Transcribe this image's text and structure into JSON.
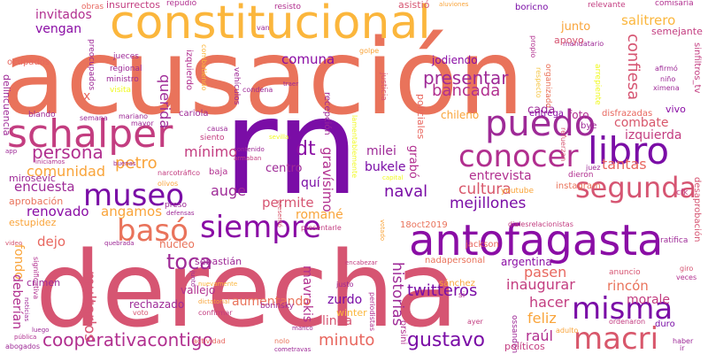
{
  "words": {
    "acusacion": "acusación",
    "rn": "rn",
    "derecha": "derecha",
    "constitucional": "constitucional",
    "antofagasta": "antofagasta",
    "schalper": "schalper",
    "libro": "libro",
    "puedo": "puedo",
    "conocer": "conocer",
    "museo": "museo",
    "segunda": "segunda",
    "siempre": "siempre",
    "baso": "basó",
    "misma": "misma",
    "macri": "macri",
    "cooperativacontigo": "cooperativacontigo",
    "gustavo": "gustavo",
    "persona": "persona",
    "toca": "toca",
    "petro": "petro",
    "minimo": "mínimo",
    "comunidad": "comunidad",
    "renovado": "renovado",
    "encuesta": "encuesta",
    "angamos": "angamos",
    "presentar": "presentar",
    "bancada": "bancada",
    "comuna": "comuna",
    "querida": "querida",
    "cultura": "cultura",
    "naval": "naval",
    "mejillones": "mejillones",
    "entrevista": "entrevista",
    "tantas": "tantas",
    "combate": "combate",
    "izquierda_top": "izquierda",
    "confiesa": "confiesa",
    "salitrero": "salitrero",
    "junto": "junto",
    "cada": "cada",
    "invitados": "invitados",
    "vengan": "vengan",
    "fondo": "fondo",
    "dejo": "dejo",
    "multarlos": "multarlos",
    "mavrakis": "mavrakis",
    "historias": "historias",
    "pasen": "pasen",
    "inaugurar": "inaugurar",
    "rincon": "rincón",
    "twitteros": "twitteros",
    "hacer": "hacer",
    "morale": "morale",
    "raul": "raúl",
    "feliz": "feliz",
    "minuto": "minuto",
    "argentina": "argentina",
    "romane": "romané",
    "permite": "permite",
    "dt": "dt",
    "auge": "auge",
    "gravisimo": "gravísimo",
    "bukele": "bukele",
    "milei": "milei",
    "centro": "centro",
    "que": "quí",
    "aumentando": "aumentando",
    "linda": "linda",
    "zurdo": "zurdo",
    "rechazado": "rechazado",
    "vallejo": "vallejo",
    "sebastian": "sebastián",
    "nucleo": "núcleo",
    "crimen": "crimen",
    "deberian": "deberían",
    "estupidez": "estupidez",
    "aprobacion": "aprobación",
    "mirosevic": "mirosevic",
    "delincuencia": "delincuencia",
    "ocupados": "ocupados",
    "insurrectos": "insurrectos",
    "obras": "obras",
    "repudio": "repudió",
    "resisto": "resisto",
    "asistio": "asistió",
    "aluviones": "aluviones",
    "boricno": "boricno",
    "relevante": "relevante",
    "comisaria": "comisaría",
    "semejante": "semejante",
    "sinfiltros_tv": "sinfiltros_tv",
    "ximena": "ximena",
    "nino": "niño",
    "afirmo": "afirmó",
    "mandatario": "mandatario",
    "apoyo": "apoyo",
    "propio": "propio",
    "vivo": "vivo",
    "disfrazadas": "disfrazadas",
    "foto": "foto",
    "entrega": "entrega",
    "chileno": "chileno",
    "bye": "bye",
    "izquierda_mid": "izquierda",
    "refuerzan": "refuerzan",
    "instagram": "instagram",
    "youtube": "youtube",
    "dieron": "dieron",
    "juez": "juez",
    "desaprobacion": "desaprobación",
    "cfk": "cfk",
    "ratifica": "ratifica",
    "dialesrelacionistas": "dialesrelacionistas",
    "jackson": "jackson",
    "fecha": "18oct2019",
    "giro": "giro",
    "veces": "veces",
    "anuncio": "anuncio",
    "duro": "duro",
    "ordenaron": "ordenaron",
    "ossandon": "ossandón",
    "adulto": "adulto",
    "politicos": "políticos",
    "haber": "haber",
    "ir": "ir",
    "sanchez": "sánchez",
    "si": "si",
    "winter": "winter",
    "orsini": "orsini",
    "nadapersonal": "nadapersonal",
    "justo": "justo",
    "periodistas": "periodistas",
    "borinsky": "borinsky",
    "nolo": "nolo",
    "cometravas": "cometravas",
    "confirmar": "confirmar",
    "voto": "voto",
    "actividad": "actividad",
    "dictatorial": "dictatorial",
    "nuevamente": "nuevamente",
    "manco": "manco",
    "ayer": "ayer",
    "encabezar": "encabezar",
    "presentarle": "presentarle",
    "grabo": "grabó",
    "presento": "presentó",
    "capital": "capital",
    "votado": "votado",
    "jodiendo": "jodiendo",
    "recepcion": "recepción",
    "policiales": "policiales",
    "justicia": "justicia",
    "lamentablemente": "lamentablemente",
    "sevilla": "sevilla",
    "contenido": "contenido",
    "traer": "traer",
    "armaban": "armaban",
    "causa": "causa",
    "siento": "siento",
    "cariola": "cariola",
    "mayor": "mayor",
    "baja": "baja",
    "narcotrafico": "narcotráfico",
    "olivos": "olivos",
    "buenas": "buenas",
    "iniciamos": "iniciamos",
    "app": "app",
    "blando": "blando",
    "semana": "semana",
    "mariano": "mariano",
    "visita": "visita",
    "ministro": "ministro",
    "regional": "regional",
    "jueces": "jueces",
    "preocupados": "preocupados",
    "izquierdo": "izquierdo",
    "combatiendo": "combatiendo",
    "vehiculos": "vehículos",
    "condena": "condena",
    "van": "van",
    "golpe": "golpe",
    "x": "x",
    "preso": "preso",
    "defensas": "defensas",
    "quebrada": "quebrada",
    "video": "video",
    "noticias": "noticias",
    "significativa": "significativa",
    "publica": "pública",
    "abogados": "abogados",
    "luego": "luego",
    "junto2": "juntó",
    "arrepiente": "arrepiente",
    "respecto": "respecto",
    "organizado": "organizado"
  }
}
